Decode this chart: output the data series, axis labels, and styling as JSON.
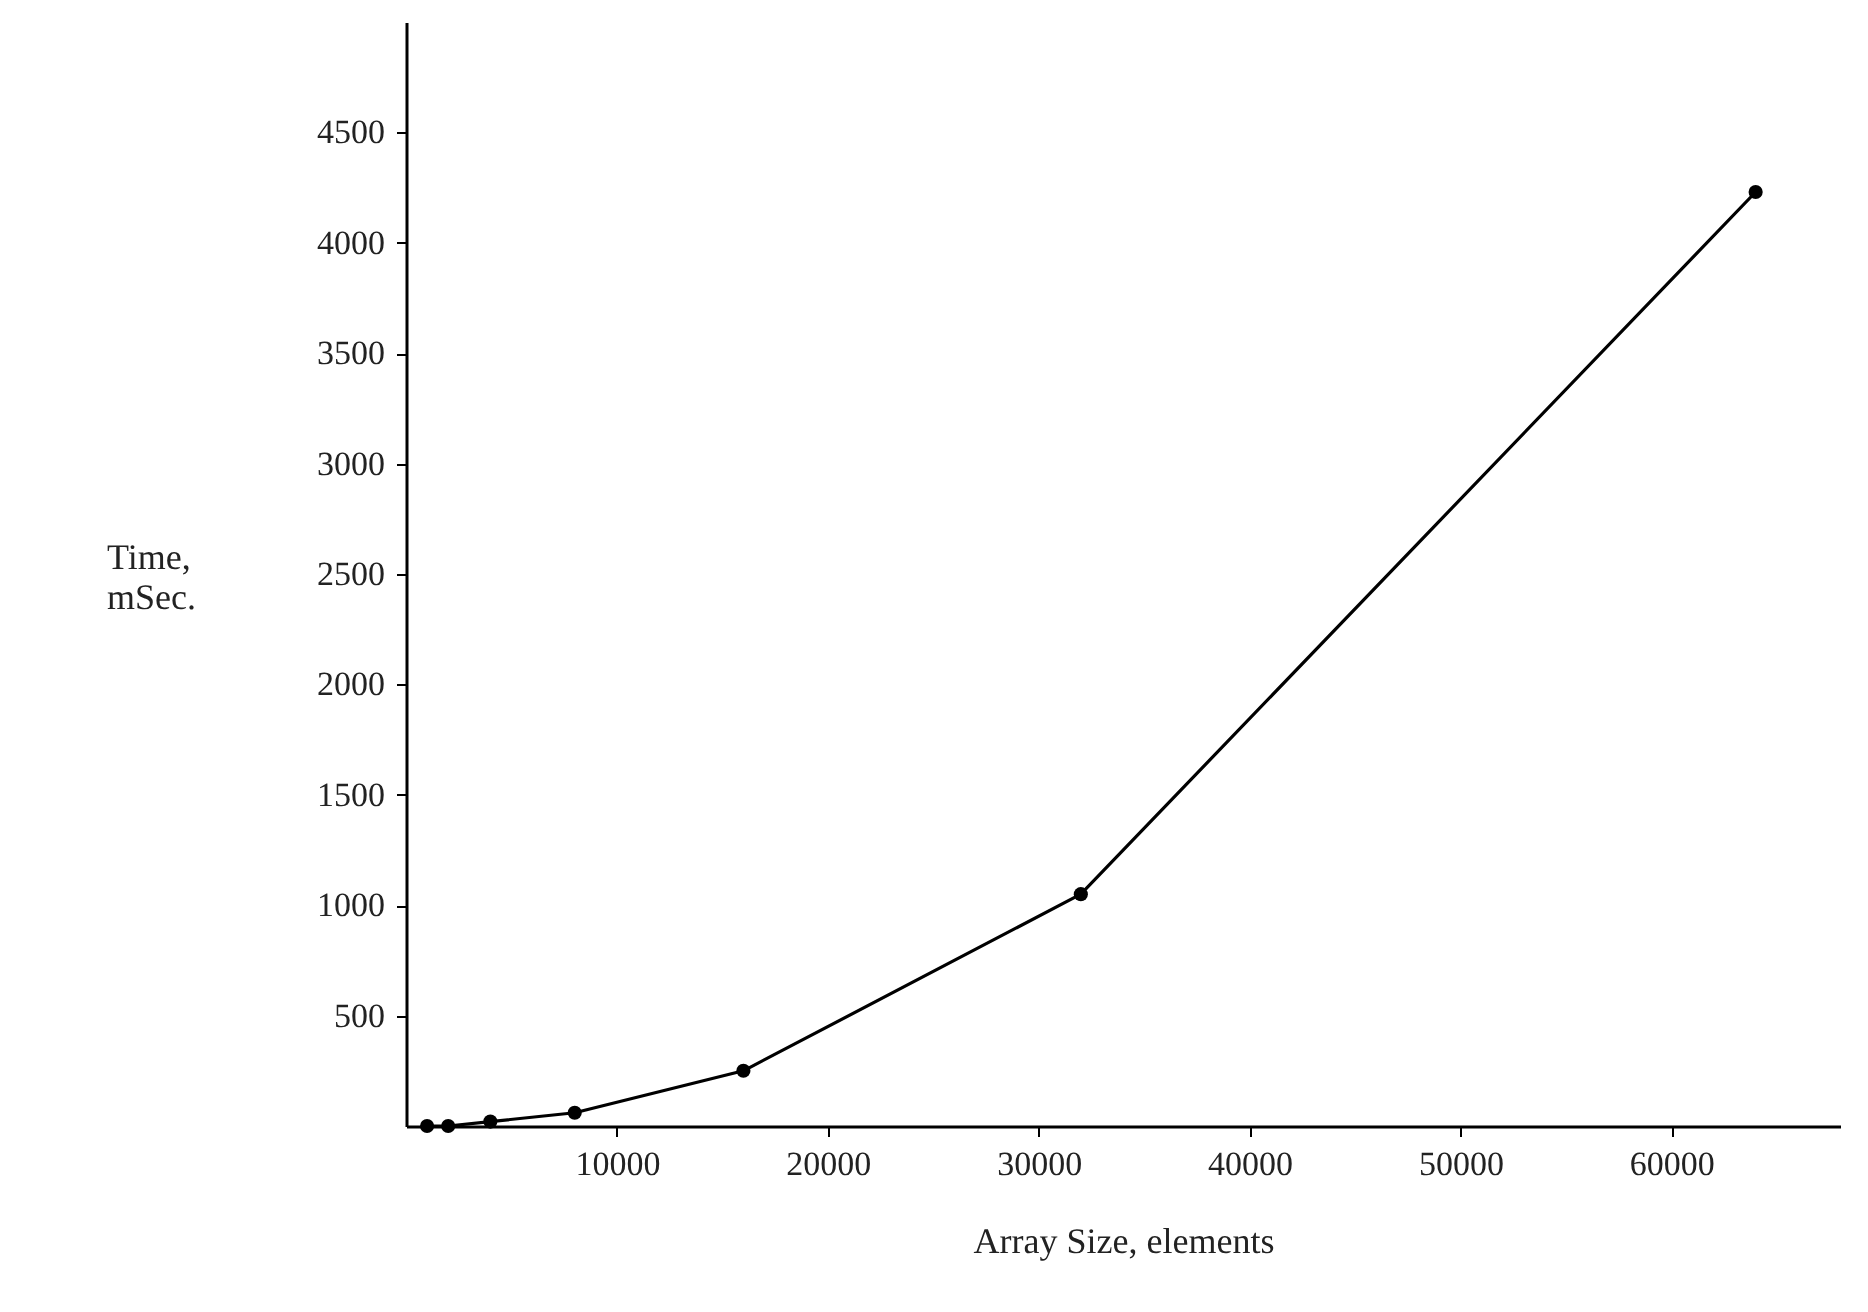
{
  "chart_data": {
    "type": "line",
    "xlabel": "Array Size, elements",
    "ylabel": "Time,\nmSec.",
    "x": [
      1000,
      2000,
      4000,
      8000,
      16000,
      32000,
      64000
    ],
    "series": [
      {
        "color": "#000000",
        "values": [
          0,
          0,
          20,
          60,
          250,
          1050,
          4230
        ]
      }
    ],
    "xlim": [
      0,
      68000
    ],
    "xticks": [
      10000,
      20000,
      30000,
      40000,
      50000,
      60000
    ],
    "ylim": [
      0,
      5000
    ],
    "yticks": [
      500,
      1000,
      1500,
      2000,
      2500,
      3000,
      3500,
      4000,
      4500
    ],
    "grid": false,
    "marker": "circle",
    "line_style": "solid"
  }
}
